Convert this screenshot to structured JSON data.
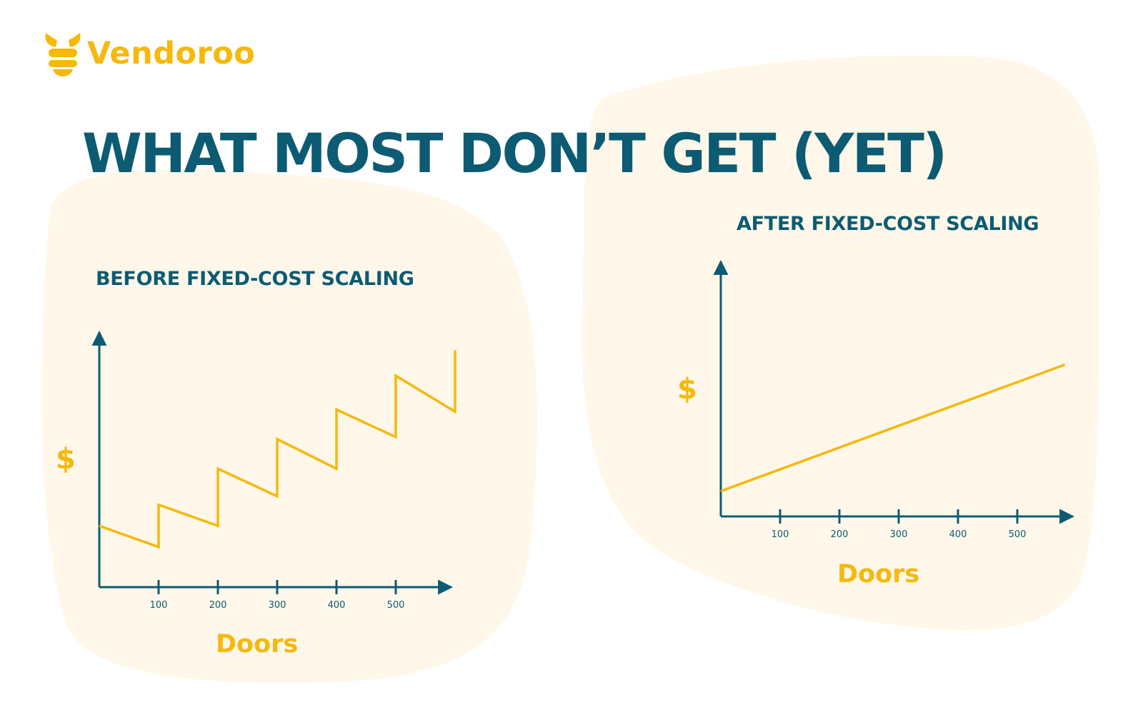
{
  "brand": {
    "name": "Vendoroo"
  },
  "headline": "WHAT MOST DON’T GET (YET)",
  "colors": {
    "teal": "#0c5b73",
    "yellow": "#f6b80b",
    "backdrop": "#fff8ea"
  },
  "icons": {
    "logo": "bee-logo-icon"
  },
  "chart_data": [
    {
      "type": "line",
      "title": "BEFORE FIXED-COST SCALING",
      "xlabel": "Doors",
      "ylabel": "$",
      "x_ticks": [
        100,
        200,
        300,
        400,
        500
      ],
      "xlim": [
        0,
        600
      ],
      "ylim": [
        0,
        10
      ],
      "y_ticks_shown": false,
      "grid": false,
      "series": [
        {
          "values": [
            {
              "x": 0,
              "y": 2.9
            },
            {
              "x": 100,
              "y": 1.9
            },
            {
              "x": 100,
              "y": 3.9
            },
            {
              "x": 200,
              "y": 2.9
            },
            {
              "x": 200,
              "y": 5.6
            },
            {
              "x": 300,
              "y": 4.3
            },
            {
              "x": 300,
              "y": 7.0
            },
            {
              "x": 400,
              "y": 5.6
            },
            {
              "x": 400,
              "y": 8.4
            },
            {
              "x": 500,
              "y": 7.1
            },
            {
              "x": 500,
              "y": 10.0
            },
            {
              "x": 600,
              "y": 8.3
            },
            {
              "x": 600,
              "y": 11.2
            }
          ]
        }
      ]
    },
    {
      "type": "line",
      "title": "AFTER FIXED-COST SCALING",
      "xlabel": "Doors",
      "ylabel": "$",
      "x_ticks": [
        100,
        200,
        300,
        400,
        500
      ],
      "xlim": [
        0,
        600
      ],
      "ylim": [
        0,
        10
      ],
      "y_ticks_shown": false,
      "grid": false,
      "series": [
        {
          "values": [
            {
              "x": 0,
              "y": 1.0
            },
            {
              "x": 580,
              "y": 6.0
            }
          ]
        }
      ]
    }
  ]
}
